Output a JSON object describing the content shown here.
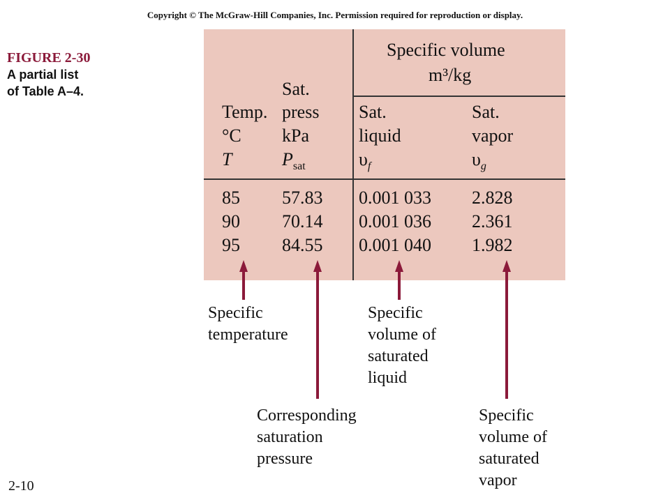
{
  "copyright": "Copyright © The McGraw-Hill Companies, Inc. Permission required for reproduction or display.",
  "figure": {
    "number": "FIGURE 2-30",
    "caption_line1": "A partial list",
    "caption_line2": "of Table A–4."
  },
  "page_number": "2-10",
  "table": {
    "header": {
      "specific_volume_line1": "Specific volume",
      "specific_volume_unit": "m³/kg",
      "temp": [
        "Temp.",
        "°C",
        "T"
      ],
      "pressure": [
        "Sat.",
        "press",
        "kPa",
        "P",
        "sat"
      ],
      "liquid": [
        "Sat.",
        "liquid",
        "υ",
        "f"
      ],
      "vapor": [
        "Sat.",
        "vapor",
        "υ",
        "g"
      ]
    },
    "rows": [
      {
        "T": "85",
        "P": "57.83",
        "vf": "0.001 033",
        "vg": "2.828"
      },
      {
        "T": "90",
        "P": "70.14",
        "vf": "0.001 036",
        "vg": "2.361"
      },
      {
        "T": "95",
        "P": "84.55",
        "vf": "0.001 040",
        "vg": "1.982"
      }
    ]
  },
  "annotations": {
    "temperature": [
      "Specific",
      "temperature"
    ],
    "pressure": [
      "Corresponding",
      "saturation",
      "pressure"
    ],
    "liquid": [
      "Specific",
      "volume of",
      "saturated",
      "liquid"
    ],
    "vapor": [
      "Specific",
      "volume of",
      "saturated",
      "vapor"
    ]
  },
  "colors": {
    "table_background": "#ecc8be",
    "arrow": "#8b1a3a",
    "figure_number": "#8b1a3a"
  }
}
